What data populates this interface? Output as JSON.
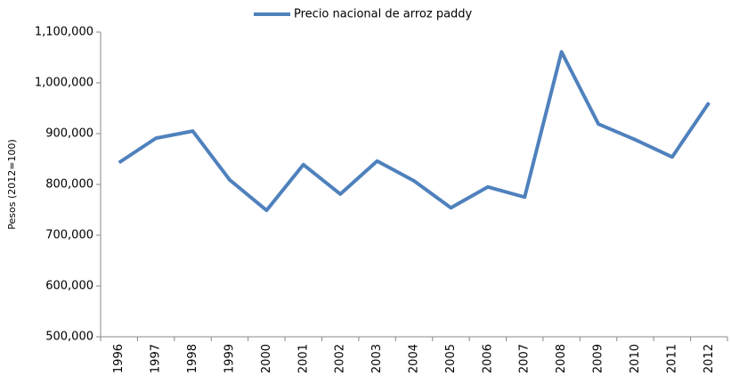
{
  "chart_data": {
    "type": "line",
    "y_axis_label": "Pesos (2012=100)",
    "categories": [
      "1996",
      "1997",
      "1998",
      "1999",
      "2000",
      "2001",
      "2002",
      "2003",
      "2004",
      "2005",
      "2006",
      "2007",
      "2008",
      "2009",
      "2010",
      "2011",
      "2012"
    ],
    "series": [
      {
        "name": "Precio nacional de arroz paddy",
        "color": "#4f81bd",
        "values": [
          843000,
          891000,
          905000,
          809000,
          749000,
          839000,
          781000,
          846000,
          807000,
          754000,
          795000,
          775000,
          1061000,
          919000,
          888000,
          854000,
          961000
        ]
      }
    ],
    "ylim": [
      500000,
      1100000
    ],
    "yticks": [
      {
        "value": 500000,
        "label": "500,000"
      },
      {
        "value": 600000,
        "label": "600,000"
      },
      {
        "value": 700000,
        "label": "700,000"
      },
      {
        "value": 800000,
        "label": "800,000"
      },
      {
        "value": 900000,
        "label": "900,000"
      },
      {
        "value": 1000000,
        "label": "1,000,000"
      },
      {
        "value": 1100000,
        "label": "1,100,000"
      }
    ],
    "legend": "top"
  }
}
